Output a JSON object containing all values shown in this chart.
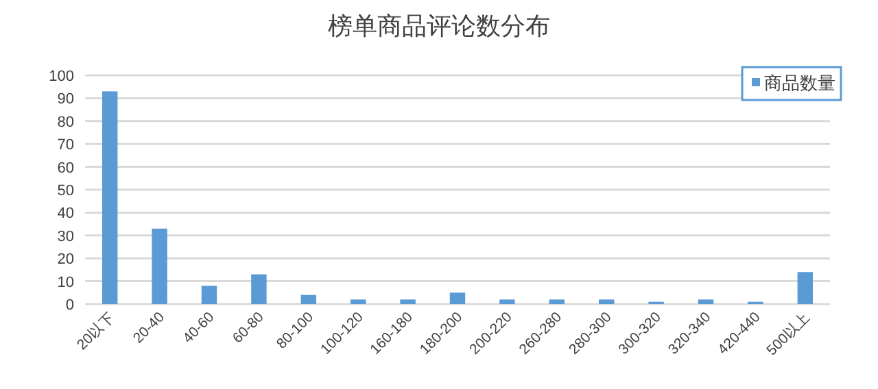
{
  "chart_data": {
    "type": "bar",
    "title": "榜单商品评论数分布",
    "categories": [
      "20以下",
      "20-40",
      "40-60",
      "60-80",
      "80-100",
      "100-120",
      "160-180",
      "180-200",
      "200-220",
      "260-280",
      "280-300",
      "300-320",
      "320-340",
      "420-440",
      "500以上"
    ],
    "series": [
      {
        "name": "商品数量",
        "color": "#5b9bd5",
        "values": [
          93,
          33,
          8,
          13,
          4,
          2,
          2,
          5,
          2,
          2,
          2,
          1,
          2,
          1,
          14
        ]
      }
    ],
    "ylim": [
      0,
      100
    ],
    "yticks": [
      0,
      10,
      20,
      30,
      40,
      50,
      60,
      70,
      80,
      90,
      100
    ],
    "grid": "y",
    "legend": "top right"
  }
}
